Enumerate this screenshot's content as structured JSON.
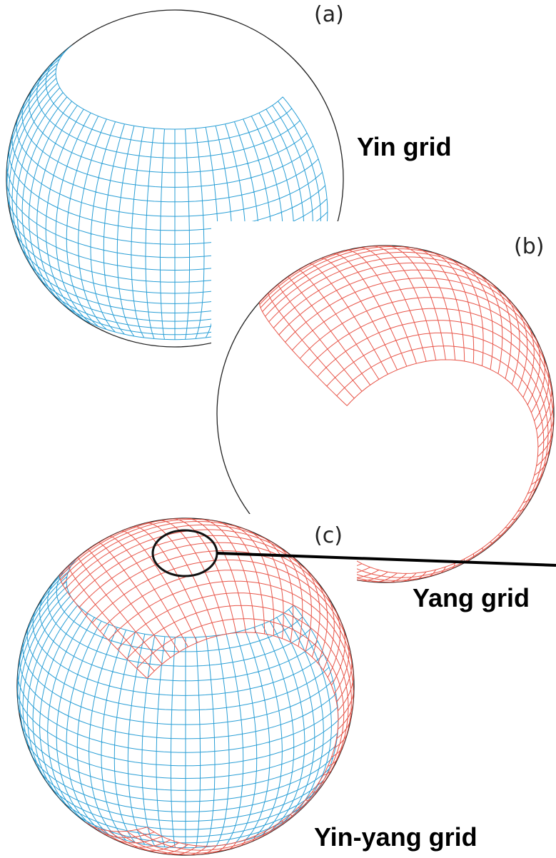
{
  "panels": [
    {
      "label": "(a)",
      "caption": "Yin grid"
    },
    {
      "label": "(b)",
      "caption": "Yang grid"
    },
    {
      "label": "(c)",
      "caption": "Yin-yang grid"
    }
  ]
}
